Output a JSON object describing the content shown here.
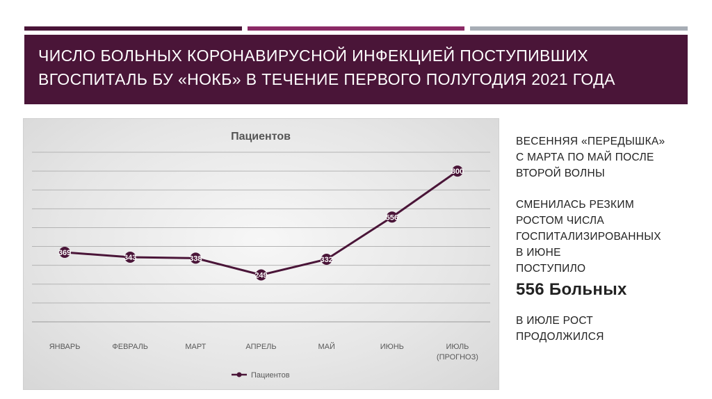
{
  "slide": {
    "title_lines": [
      "ЧИСЛО БОЛЬНЫХ КОРОНАВИРУСНОЙ ИНФЕКЦИЕЙ ПОСТУПИВШИХ",
      "ВГОСПИТАЛЬ БУ «НОКБ» В ТЕЧЕНИЕ ПЕРВОГО ПОЛУГОДИЯ 2021 ГОДА"
    ],
    "side_text": {
      "block1": [
        "ВЕСЕННЯЯ «ПЕРЕДЫШКА»",
        "С МАРТА ПО МАЙ  ПОСЛЕ",
        "ВТОРОЙ ВОЛНЫ"
      ],
      "block2": [
        "СМЕНИЛАСЬ РЕЗКИМ",
        "РОСТОМ ЧИСЛА",
        "ГОСПИТАЛИЗИРОВАННЫХ",
        "В ИЮНЕ",
        "ПОСТУПИЛО"
      ],
      "highlight": "556 Больных",
      "block3": [
        "В ИЮЛЕ РОСТ",
        "ПРОДОЛЖИЛСЯ"
      ]
    },
    "colors": {
      "accent_dark": "#4a1538",
      "accent_mid": "#8b2a65",
      "accent_gray": "#a7adb5",
      "series_line": "#4a1538"
    }
  },
  "chart_data": {
    "type": "line",
    "title": "Пациентов",
    "categories": [
      [
        "ЯНВАРЬ"
      ],
      [
        "ФЕВРАЛЬ"
      ],
      [
        "МАРТ"
      ],
      [
        "АПРЕЛЬ"
      ],
      [
        "МАЙ"
      ],
      [
        "ИЮНЬ"
      ],
      [
        "ИЮЛЬ",
        "(ПРОГНОЗ)"
      ]
    ],
    "series": [
      {
        "name": "Пациентов",
        "values": [
          369,
          343,
          338,
          249,
          332,
          556,
          800
        ]
      }
    ],
    "ylim": [
      0,
      900
    ],
    "grid_step": 100,
    "grid": true,
    "legend": "bottom",
    "data_labels": true,
    "y_tick_labels_shown": false
  }
}
